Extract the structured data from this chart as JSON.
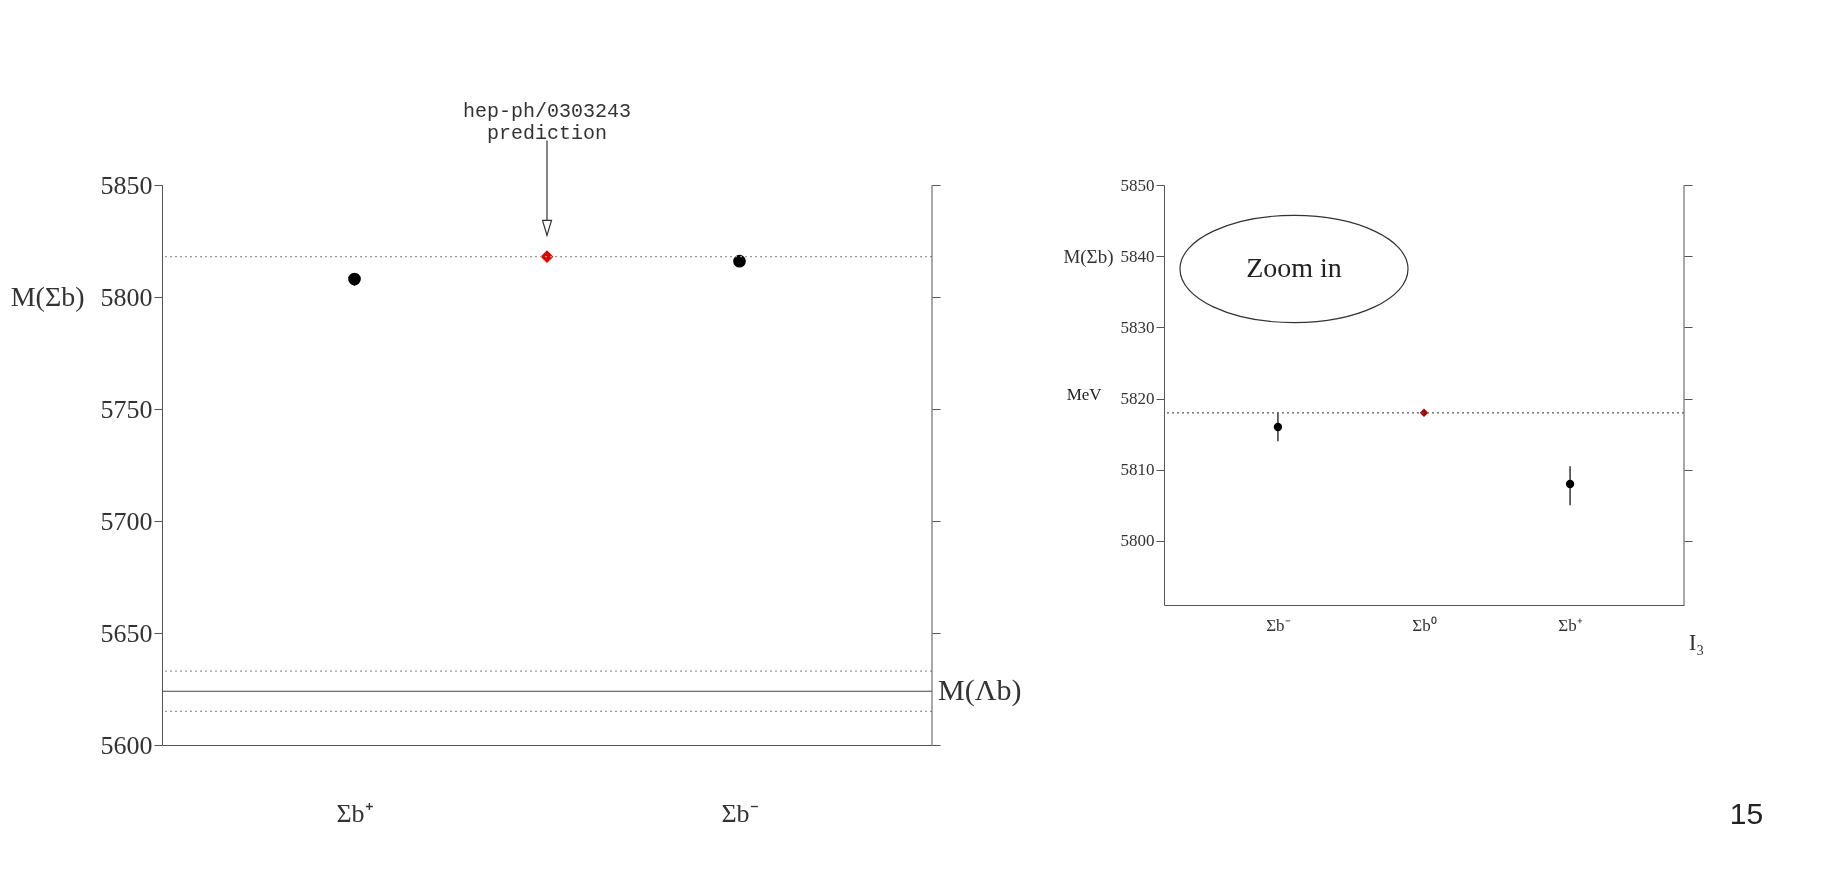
{
  "chart_data": [
    {
      "type": "scatter",
      "ylabel": "M(Σb)",
      "categories": [
        "Σb⁺",
        null,
        "Σb⁻"
      ],
      "ylim": [
        5600,
        5850
      ],
      "yticks": [
        5600,
        5650,
        5700,
        5750,
        5800,
        5850
      ],
      "series": [
        {
          "color": "#000000",
          "marker": "circle",
          "values": [
            5808,
            null,
            5816
          ],
          "errors": [
            [
              5805,
              5810.5
            ],
            null,
            [
              5814,
              5818
            ]
          ]
        },
        {
          "color": "#e00000",
          "marker": "diamond",
          "values": [
            null,
            5818,
            null
          ]
        }
      ],
      "ref_lines": [
        {
          "axis": "y",
          "value": 5818,
          "line_style": "dotted",
          "color": "#999999"
        },
        {
          "axis": "y",
          "value": 5633,
          "line_style": "dotted",
          "color": "#999999"
        },
        {
          "axis": "y",
          "value": 5624,
          "label": "M(Λb)",
          "line_style": "solid",
          "color": "#444444"
        },
        {
          "axis": "y",
          "value": 5615,
          "line_style": "dotted",
          "color": "#999999"
        }
      ],
      "annotations": [
        "hep-ph/0303243\nprediction"
      ]
    },
    {
      "type": "scatter",
      "ylabel": "M(Σb)",
      "xlabel": "I₃",
      "categories": [
        "Σb⁻",
        "Σb⁰",
        "Σb⁺"
      ],
      "ylim": [
        5791,
        5850
      ],
      "yticks": [
        5800,
        5810,
        5820,
        5830,
        5840,
        5850
      ],
      "series": [
        {
          "color": "#000000",
          "marker": "circle",
          "values": [
            5816,
            null,
            5808
          ],
          "errors": [
            [
              5814,
              5818
            ],
            null,
            [
              5805,
              5810.5
            ]
          ]
        },
        {
          "color": "#aa0000",
          "marker": "diamond",
          "values": [
            null,
            5818,
            null
          ]
        }
      ],
      "ref_lines": [
        {
          "axis": "y",
          "value": 5818,
          "line_style": "dotted",
          "color": "#555555"
        }
      ],
      "annotations": [
        "Zoom in",
        "MeV",
        "15"
      ]
    }
  ]
}
